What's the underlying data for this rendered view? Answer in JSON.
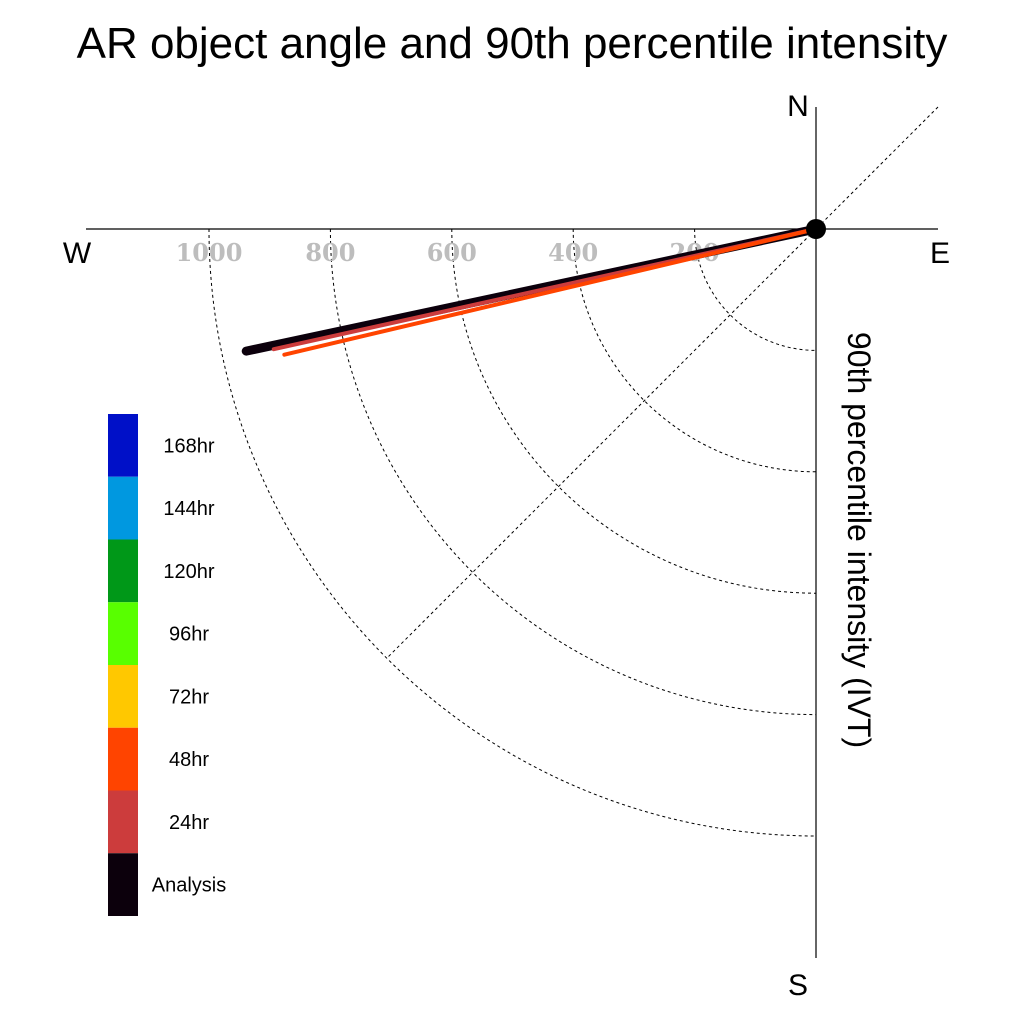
{
  "chart_data": {
    "type": "polar-vector",
    "title": "AR object angle and 90th percentile intensity",
    "radial_axis_label": "90th percentile intensity (IVT)",
    "radial_ticks": [
      1000,
      800,
      600,
      400,
      200
    ],
    "radial_rings": [
      200,
      400,
      600,
      800,
      1000
    ],
    "compass": {
      "north": "N",
      "south": "S",
      "east": "E",
      "west": "W"
    },
    "grid": true,
    "legend_placement": "left",
    "legend": [
      {
        "label": "168hr",
        "color": "#0010c8"
      },
      {
        "label": "144hr",
        "color": "#0098e0"
      },
      {
        "label": "120hr",
        "color": "#009818"
      },
      {
        "label": "96hr",
        "color": "#58ff00"
      },
      {
        "label": "72hr",
        "color": "#ffc800"
      },
      {
        "label": "48hr",
        "color": "#ff4400"
      },
      {
        "label": "24hr",
        "color": "#cc3c3c"
      },
      {
        "label": "Analysis",
        "color": "#0c000c"
      }
    ],
    "series": [
      {
        "name": "Analysis",
        "color": "#0c000c",
        "intensity": 960,
        "angle_deg_below_west": 12.1
      },
      {
        "name": "24hr",
        "color": "#cc3c3c",
        "intensity": 915,
        "angle_deg_below_west": 12.5
      },
      {
        "name": "48hr",
        "color": "#ff4400",
        "intensity": 900,
        "angle_deg_below_west": 13.3
      }
    ]
  }
}
